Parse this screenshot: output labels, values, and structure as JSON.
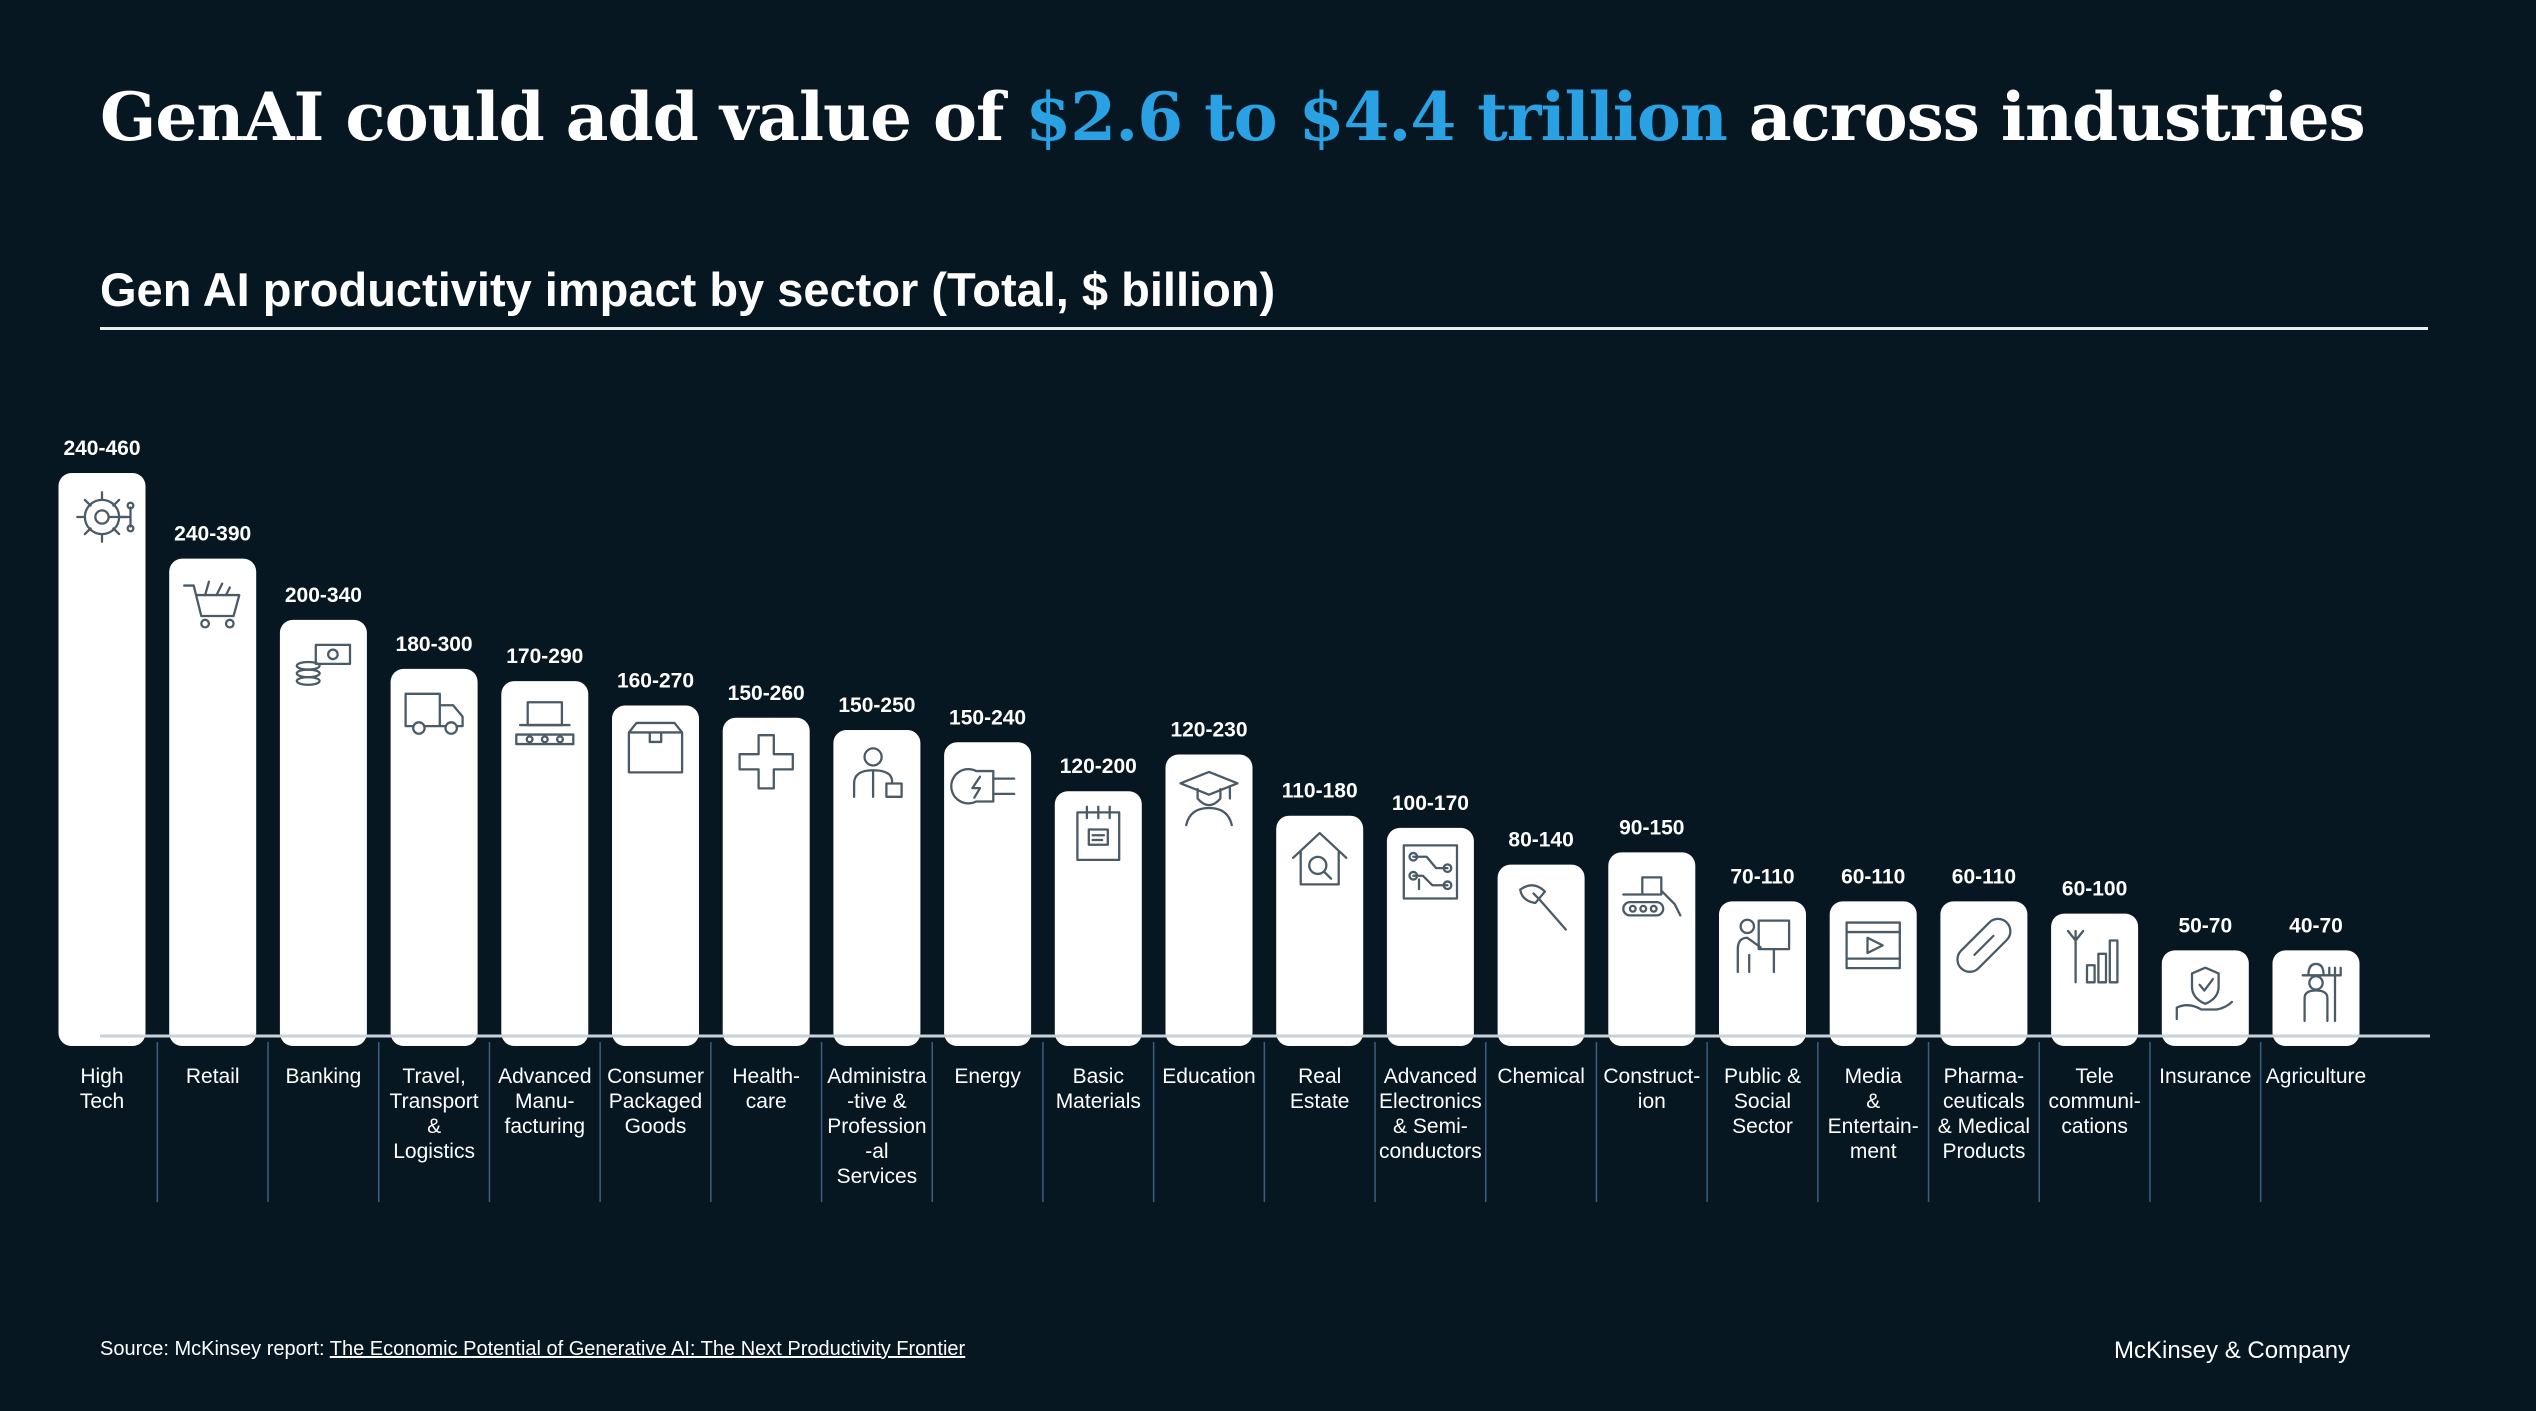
{
  "headline": {
    "prefix": "GenAI could add value of ",
    "highlight": "$2.6 to $4.4 trillion",
    "suffix": " across industries"
  },
  "subtitle": {
    "bold": "Gen AI productivity impact by sector (Total,",
    "regular": " $ billion)"
  },
  "colors": {
    "background": "#071722",
    "accent": "#2aa1e2",
    "bar": "#ffffff",
    "icon_stroke": "#4a5a66",
    "divider": "#3a5f80"
  },
  "chart_data": {
    "type": "bar",
    "title": "Gen AI productivity impact by sector (Total, $ billion)",
    "value_unit": "$ billion",
    "ylim": [
      0,
      460
    ],
    "grid": false,
    "categories": [
      "High Tech",
      "Retail",
      "Banking",
      "Travel, Transport & Logistics",
      "Advanced Manufacturing",
      "Consumer Packaged Goods",
      "Healthcare",
      "Administrative & Professional Services",
      "Energy",
      "Basic Materials",
      "Education",
      "Real Estate",
      "Advanced Electronics & Semiconductors",
      "Chemical",
      "Construction",
      "Public & Social Sector",
      "Media & Entertainment",
      "Pharmaceuticals & Medical Products",
      "Telecommunications",
      "Insurance",
      "Agriculture"
    ],
    "category_label_lines": [
      [
        "High",
        "Tech"
      ],
      [
        "Retail"
      ],
      [
        "Banking"
      ],
      [
        "Travel,",
        "Transport",
        "&",
        "Logistics"
      ],
      [
        "Advanced",
        "Manu-",
        "facturing"
      ],
      [
        "Consumer",
        "Packaged",
        "Goods"
      ],
      [
        "Health-",
        "care"
      ],
      [
        "Administra",
        "-tive &",
        "Profession",
        "-al",
        "Services"
      ],
      [
        "Energy"
      ],
      [
        "Basic",
        "Materials"
      ],
      [
        "Education"
      ],
      [
        "Real",
        "Estate"
      ],
      [
        "Advanced",
        "Electronics",
        "& Semi-",
        "conductors"
      ],
      [
        "Chemical"
      ],
      [
        "Construct-",
        "ion"
      ],
      [
        "Public &",
        "Social",
        "Sector"
      ],
      [
        "Media",
        "&",
        "Entertain-",
        "ment"
      ],
      [
        "Pharma-",
        "ceuticals",
        "& Medical",
        "Products"
      ],
      [
        "Tele",
        "communi-",
        "cations"
      ],
      [
        "Insurance"
      ],
      [
        "Agriculture"
      ]
    ],
    "ranges": [
      [
        240,
        460
      ],
      [
        240,
        390
      ],
      [
        200,
        340
      ],
      [
        180,
        300
      ],
      [
        170,
        290
      ],
      [
        160,
        270
      ],
      [
        150,
        260
      ],
      [
        150,
        250
      ],
      [
        150,
        240
      ],
      [
        120,
        200
      ],
      [
        120,
        230
      ],
      [
        110,
        180
      ],
      [
        100,
        170
      ],
      [
        80,
        140
      ],
      [
        90,
        150
      ],
      [
        70,
        110
      ],
      [
        60,
        110
      ],
      [
        60,
        110
      ],
      [
        60,
        100
      ],
      [
        50,
        70
      ],
      [
        40,
        70
      ]
    ],
    "value_labels": [
      "240-460",
      "240-390",
      "200-340",
      "180-300",
      "170-290",
      "160-270",
      "150-260",
      "150-250",
      "150-240",
      "120-200",
      "120-230",
      "110-180",
      "100-170",
      "80-140",
      "90-150",
      "70-110",
      "60-110",
      "60-110",
      "60-100",
      "50-70",
      "40-70"
    ],
    "icons": [
      "ai-chip-gear-icon",
      "shopping-cart-icon",
      "money-stack-icon",
      "delivery-truck-icon",
      "conveyor-laptop-icon",
      "package-box-icon",
      "medical-cross-icon",
      "professional-person-icon",
      "energy-plug-icon",
      "notepad-icon",
      "graduate-icon",
      "house-search-icon",
      "circuit-board-icon",
      "paint-brush-icon",
      "bulldozer-icon",
      "presenter-board-icon",
      "video-player-icon",
      "pill-capsule-icon",
      "signal-tower-icon",
      "hand-shield-icon",
      "farmer-icon"
    ]
  },
  "footer": {
    "source_prefix": "Source: McKinsey report: ",
    "source_link": "The Economic Potential of Generative AI: The Next Productivity Frontier",
    "brand": "McKinsey & Company"
  }
}
